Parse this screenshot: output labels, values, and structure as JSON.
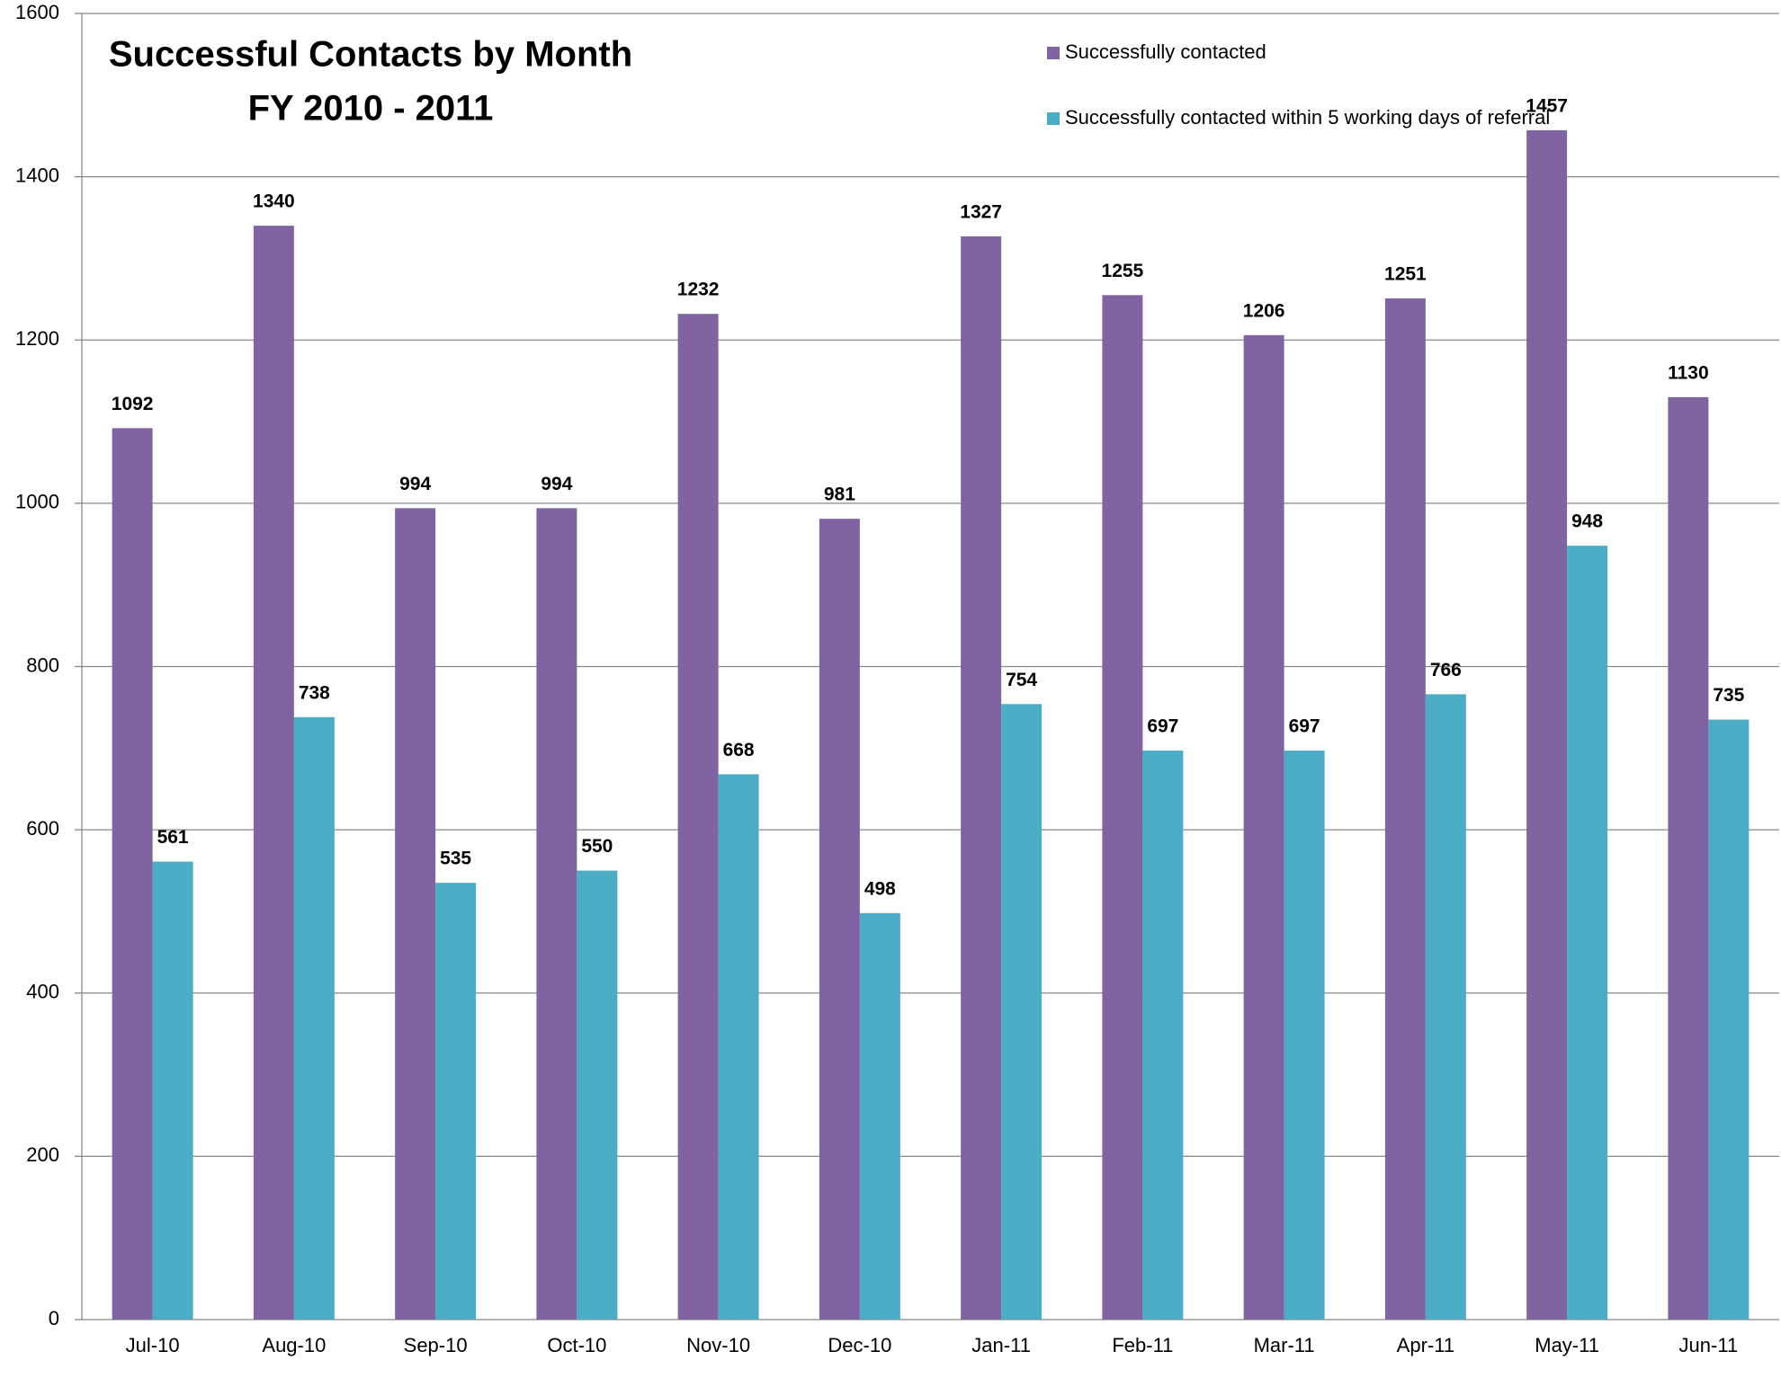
{
  "chart_data": {
    "type": "bar",
    "title": "Successful Contacts by Month",
    "subtitle": "FY 2010 - 2011",
    "categories": [
      "Jul-10",
      "Aug-10",
      "Sep-10",
      "Oct-10",
      "Nov-10",
      "Dec-10",
      "Jan-11",
      "Feb-11",
      "Mar-11",
      "Apr-11",
      "May-11",
      "Jun-11"
    ],
    "series": [
      {
        "name": "Successfully contacted",
        "color": "#8064a2",
        "values": [
          1092,
          1340,
          994,
          994,
          1232,
          981,
          1327,
          1255,
          1206,
          1251,
          1457,
          1130
        ]
      },
      {
        "name": "Successfully contacted within 5 working days of referral",
        "color": "#4bacc6",
        "values": [
          561,
          738,
          535,
          550,
          668,
          498,
          754,
          697,
          697,
          766,
          948,
          735
        ]
      }
    ],
    "ylim": [
      0,
      1600
    ],
    "yticks": [
      0,
      200,
      400,
      600,
      800,
      1000,
      1200,
      1400,
      1600
    ],
    "grid": true,
    "legend": "top-right"
  }
}
